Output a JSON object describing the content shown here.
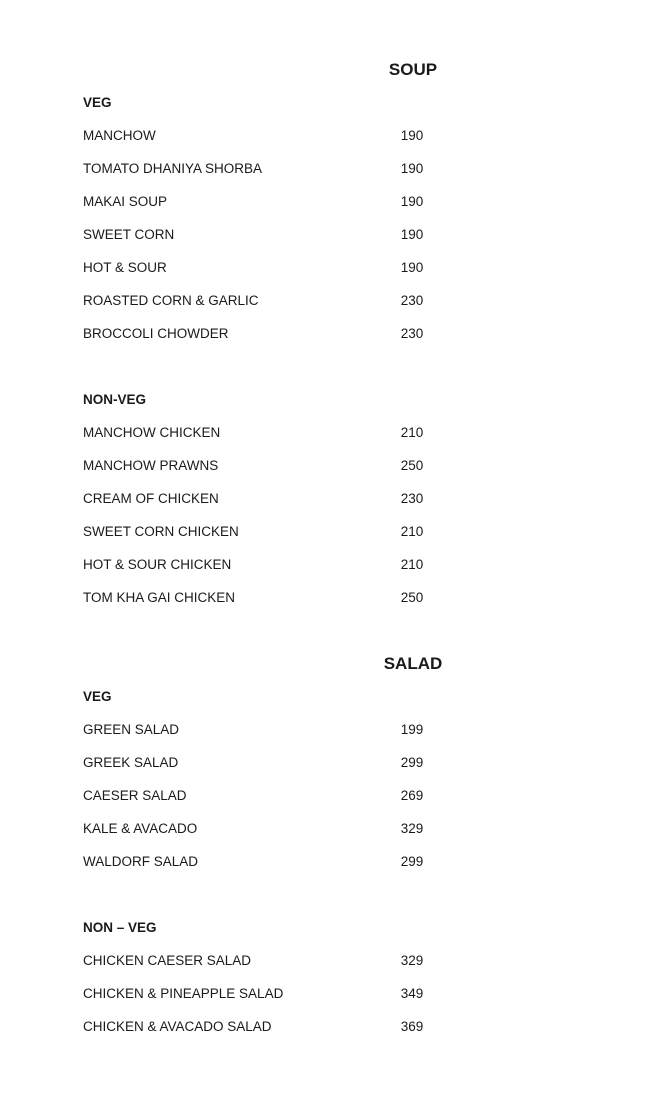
{
  "sections": [
    {
      "title": "SOUP",
      "groups": [
        {
          "label": "VEG",
          "items": [
            {
              "name": "MANCHOW",
              "price": "190"
            },
            {
              "name": "TOMATO DHANIYA SHORBA",
              "price": "190"
            },
            {
              "name": "MAKAI SOUP",
              "price": "190"
            },
            {
              "name": "SWEET CORN",
              "price": "190"
            },
            {
              "name": "HOT & SOUR",
              "price": "190"
            },
            {
              "name": "ROASTED CORN & GARLIC",
              "price": "230"
            },
            {
              "name": "BROCCOLI CHOWDER",
              "price": "230"
            }
          ]
        },
        {
          "label": "NON-VEG",
          "items": [
            {
              "name": "MANCHOW CHICKEN",
              "price": "210"
            },
            {
              "name": "MANCHOW PRAWNS",
              "price": "250"
            },
            {
              "name": "CREAM OF CHICKEN",
              "price": "230"
            },
            {
              "name": "SWEET CORN CHICKEN",
              "price": "210"
            },
            {
              "name": "HOT & SOUR CHICKEN",
              "price": "210"
            },
            {
              "name": "TOM KHA GAI CHICKEN",
              "price": "250"
            }
          ]
        }
      ]
    },
    {
      "title": "SALAD",
      "groups": [
        {
          "label": "VEG",
          "items": [
            {
              "name": "GREEN SALAD",
              "price": "199"
            },
            {
              "name": "GREEK SALAD",
              "price": "299"
            },
            {
              "name": "CAESER SALAD",
              "price": "269"
            },
            {
              "name": "KALE & AVACADO",
              "price": "329"
            },
            {
              "name": "WALDORF SALAD",
              "price": "299"
            }
          ]
        },
        {
          "label": "NON – VEG",
          "items": [
            {
              "name": "CHICKEN CAESER SALAD",
              "price": "329"
            },
            {
              "name": "CHICKEN & PINEAPPLE SALAD",
              "price": "349"
            },
            {
              "name": "CHICKEN & AVACADO SALAD",
              "price": "369"
            }
          ]
        }
      ]
    }
  ]
}
